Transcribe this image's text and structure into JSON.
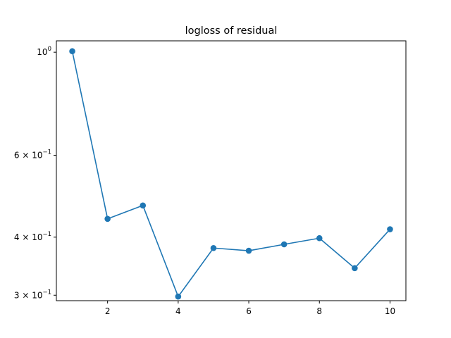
{
  "chart_data": {
    "type": "line",
    "title": "logloss of residual",
    "xlabel": "",
    "ylabel": "",
    "y_scale": "log",
    "xlim": [
      0.55,
      10.45
    ],
    "ylim": [
      0.292,
      1.058
    ],
    "grid": false,
    "legend": "none",
    "x_ticks": [
      2,
      4,
      6,
      8,
      10
    ],
    "x_tick_labels": [
      "2",
      "4",
      "6",
      "8",
      "10"
    ],
    "y_ticks": [
      {
        "value": 1.0,
        "base": "10",
        "exp": "0"
      },
      {
        "value": 0.6,
        "base": "6 × 10",
        "exp": "−1"
      },
      {
        "value": 0.4,
        "base": "4 × 10",
        "exp": "−1"
      },
      {
        "value": 0.3,
        "base": "3 × 10",
        "exp": "−1"
      }
    ],
    "series": [
      {
        "color": "#1f77b4",
        "marker": "circle",
        "x": [
          1,
          2,
          3,
          4,
          5,
          6,
          7,
          8,
          9,
          10
        ],
        "y": [
          1.005,
          0.438,
          0.468,
          0.298,
          0.379,
          0.374,
          0.386,
          0.398,
          0.343,
          0.416
        ]
      }
    ]
  }
}
